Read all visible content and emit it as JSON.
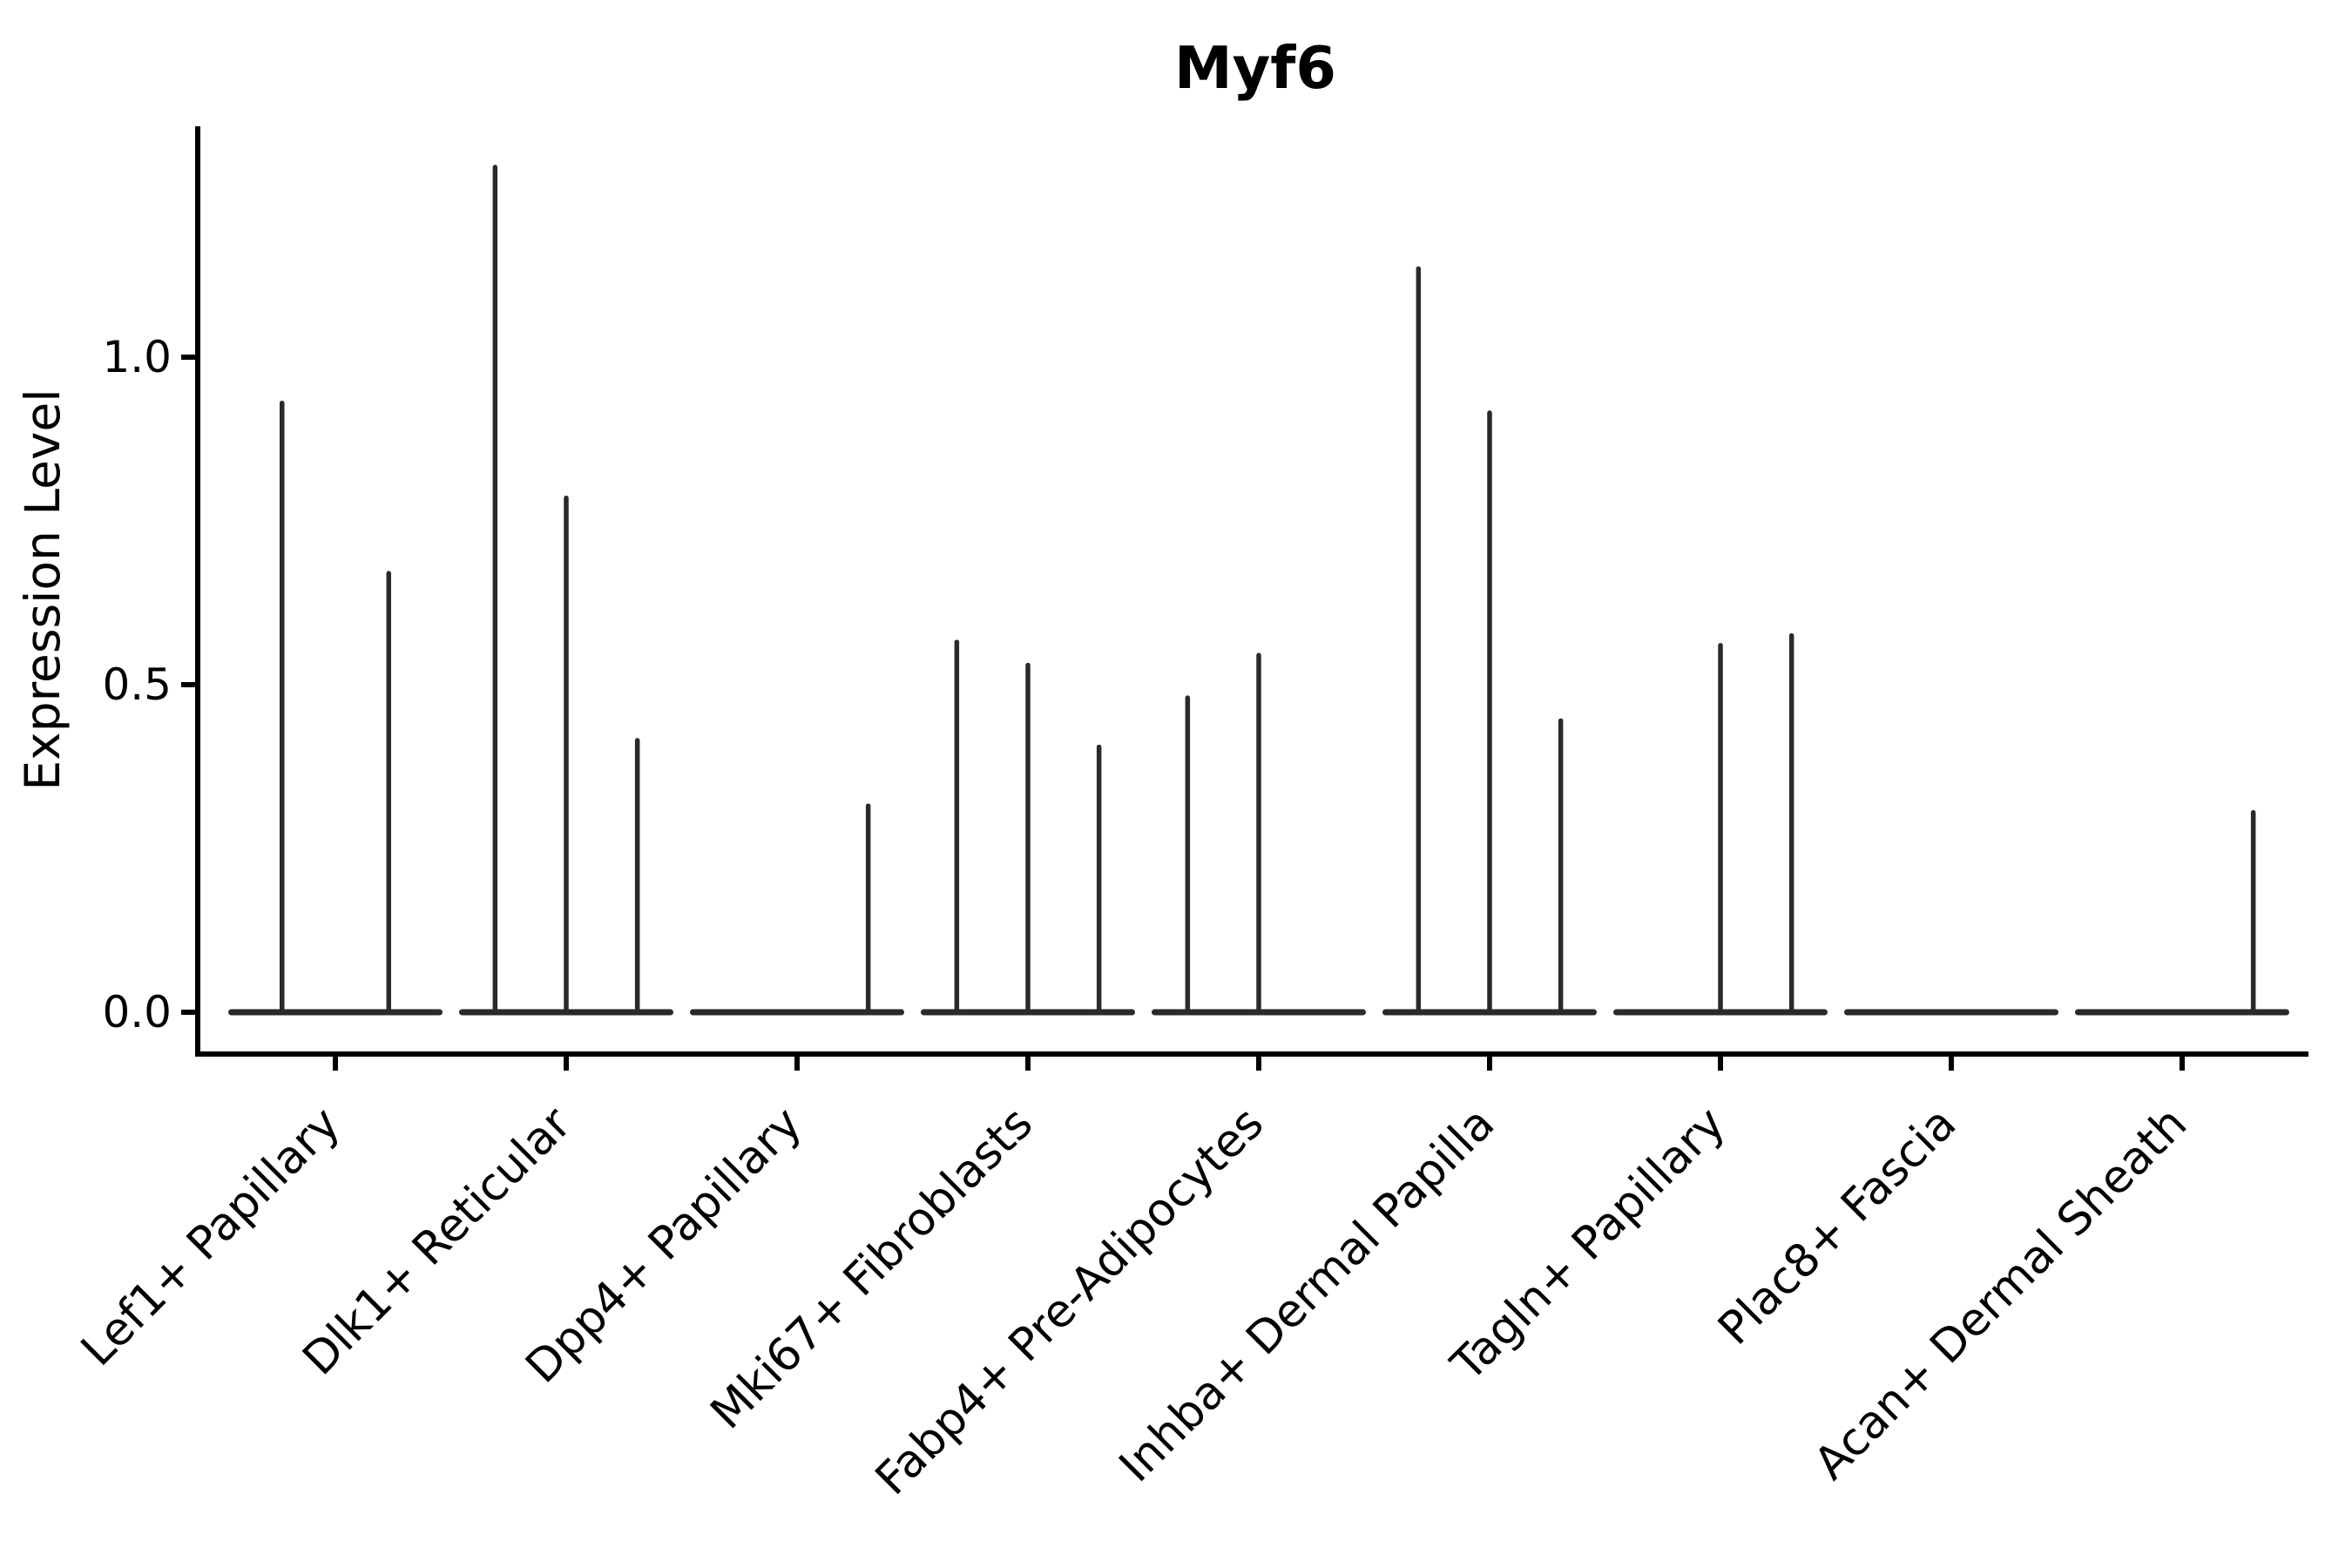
{
  "title": "Myf6",
  "chart_data": {
    "type": "violin",
    "subtype": "collapsed-violin-spikes",
    "title": "Myf6",
    "xlabel": "",
    "ylabel": "Expression Level",
    "yticks": [
      0.0,
      0.5,
      1.0
    ],
    "ytick_labels": [
      "0.0",
      "0.5",
      "1.0"
    ],
    "ylim": [
      -0.07,
      1.37
    ],
    "grid": false,
    "legend_position": "none",
    "categories": [
      "Lef1+ Papillary",
      "Dlk1+ Reticular",
      "Dpp4+ Papillary",
      "Mki67+ Fibroblasts",
      "Fabp4+ Pre-Adipocytes",
      "Inhba+ Dermal Papilla",
      "Tagln+ Papillary",
      "Plac8+ Fascia",
      "Acan+ Dermal Sheath"
    ],
    "groups": [
      {
        "label": "Lef1+ Papillary",
        "violins": 2,
        "spikes": [
          {
            "violin": 0,
            "max": 0.93
          },
          {
            "violin": 1,
            "max": 0.67
          }
        ]
      },
      {
        "label": "Dlk1+ Reticular",
        "violins": 3,
        "spikes": [
          {
            "violin": 0,
            "max": 1.29
          },
          {
            "violin": 1,
            "max": 0.785
          },
          {
            "violin": 2,
            "max": 0.415
          }
        ]
      },
      {
        "label": "Dpp4+ Papillary",
        "violins": 3,
        "spikes": [
          {
            "violin": 2,
            "max": 0.315
          }
        ]
      },
      {
        "label": "Mki67+ Fibroblasts",
        "violins": 3,
        "spikes": [
          {
            "violin": 0,
            "max": 0.565
          },
          {
            "violin": 1,
            "max": 0.53
          },
          {
            "violin": 2,
            "max": 0.405
          }
        ]
      },
      {
        "label": "Fabp4+ Pre-Adipocytes",
        "violins": 3,
        "spikes": [
          {
            "violin": 0,
            "max": 0.48
          },
          {
            "violin": 1,
            "max": 0.545
          }
        ]
      },
      {
        "label": "Inhba+ Dermal Papilla",
        "violins": 3,
        "spikes": [
          {
            "violin": 0,
            "max": 1.135
          },
          {
            "violin": 1,
            "max": 0.915
          },
          {
            "violin": 2,
            "max": 0.445
          }
        ]
      },
      {
        "label": "Tagln+ Papillary",
        "violins": 3,
        "spikes": [
          {
            "violin": 1,
            "max": 0.56
          },
          {
            "violin": 2,
            "max": 0.575
          }
        ]
      },
      {
        "label": "Plac8+ Fascia",
        "violins": 3,
        "spikes": []
      },
      {
        "label": "Acan+ Dermal Sheath",
        "violins": 3,
        "spikes": [
          {
            "violin": 2,
            "max": 0.305
          }
        ]
      }
    ],
    "colors": {
      "violin_line": "#2a2a2a",
      "axis": "#000000",
      "background": "#ffffff",
      "text": "#000000"
    }
  }
}
